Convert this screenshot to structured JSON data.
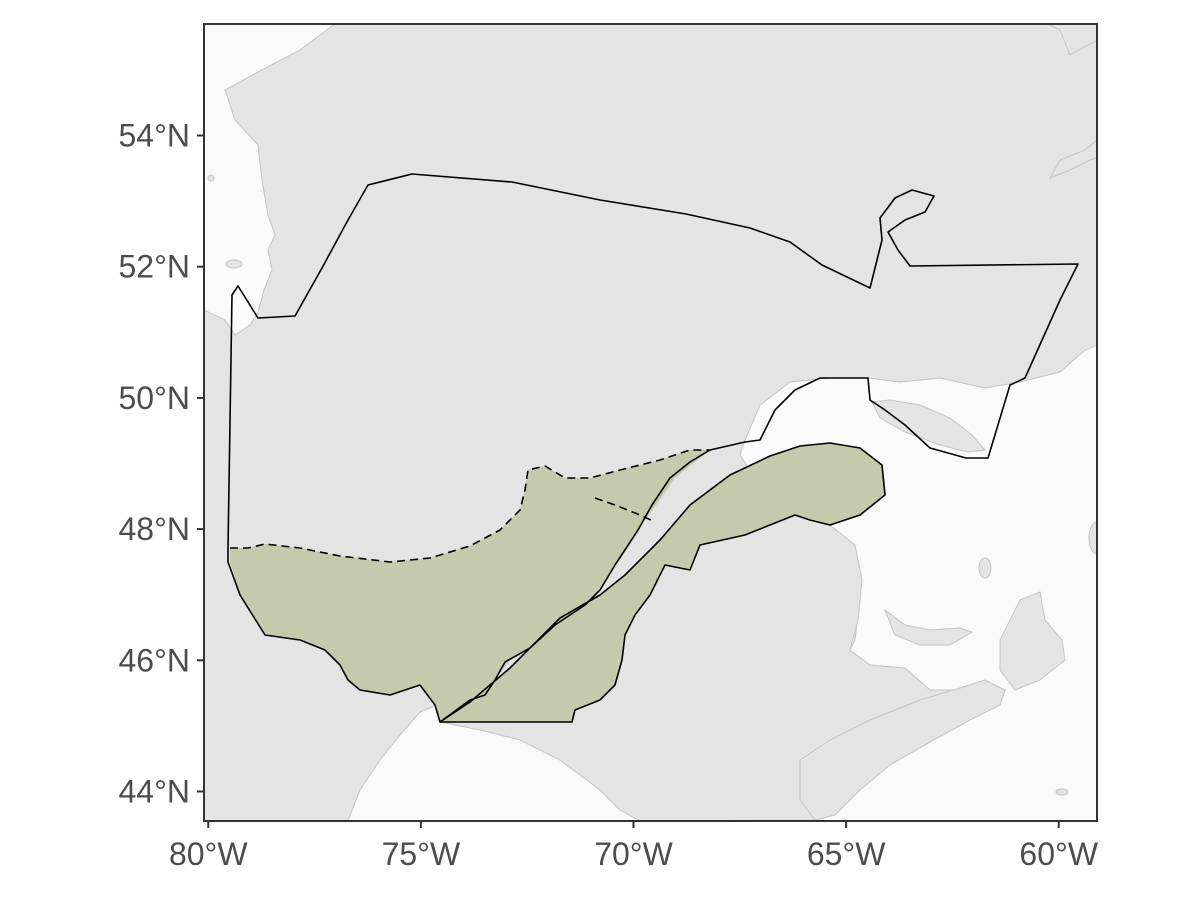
{
  "map": {
    "type": "map",
    "projection": "geographic",
    "background_color": "#fafafa",
    "land_color": "#e4e4e4",
    "region_color": "#c4caab",
    "xlim": [
      -80.1,
      -59.1
    ],
    "ylim": [
      43.55,
      55.7
    ],
    "x_ticks": [
      {
        "value": -80,
        "label": "80°W"
      },
      {
        "value": -75,
        "label": "75°W"
      },
      {
        "value": -70,
        "label": "70°W"
      },
      {
        "value": -65,
        "label": "65°W"
      },
      {
        "value": -60,
        "label": "60°W"
      }
    ],
    "y_ticks": [
      {
        "value": 54,
        "label": "54°N"
      },
      {
        "value": 52,
        "label": "52°N"
      },
      {
        "value": 50,
        "label": "50°N"
      },
      {
        "value": 48,
        "label": "48°N"
      },
      {
        "value": 46,
        "label": "46°N"
      },
      {
        "value": 44,
        "label": "44°N"
      }
    ]
  }
}
